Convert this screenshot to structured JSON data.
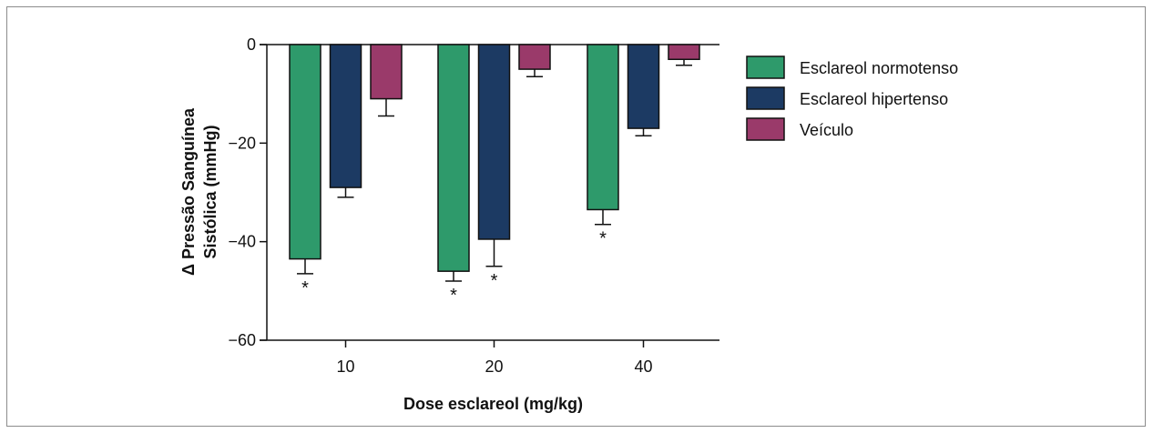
{
  "chart_data": {
    "type": "bar",
    "categories": [
      "10",
      "20",
      "40"
    ],
    "xlabel": "Dose esclareol (mg/kg)",
    "ylabel_line1": "Δ Pressão Sanguínea",
    "ylabel_line2": "Sistólica (mmHg)",
    "ylim": [
      -60,
      0
    ],
    "yticks": [
      "0",
      "−20",
      "−40",
      "−60"
    ],
    "grid": false,
    "legend_position": "right",
    "series": [
      {
        "name": "Esclareol normotenso",
        "color": "#2e9a6b",
        "values": [
          -43.5,
          -46,
          -33.5
        ],
        "errors": [
          3,
          2,
          3
        ],
        "significance": [
          "*",
          "*",
          "*"
        ]
      },
      {
        "name": "Esclareol hipertenso",
        "color": "#1c3a63",
        "values": [
          -29,
          -39.5,
          -17
        ],
        "errors": [
          2,
          5.5,
          1.5
        ],
        "significance": [
          "",
          "*",
          ""
        ]
      },
      {
        "name": "Veículo",
        "color": "#9a3a6a",
        "values": [
          -11,
          -5,
          -3
        ],
        "errors": [
          3.5,
          1.5,
          1.2
        ],
        "significance": [
          "",
          "",
          ""
        ]
      }
    ]
  }
}
